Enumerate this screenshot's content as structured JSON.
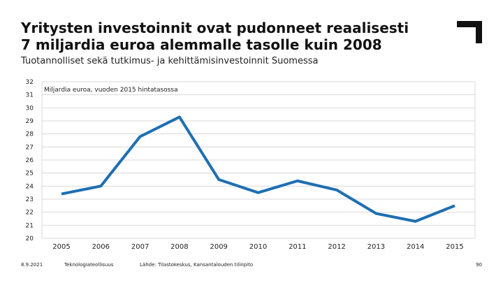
{
  "slide": {
    "title_line1": "Yritysten investoinnit ovat pudonneet reaalisesti",
    "title_line2": "7 miljardia euroa alemmalle tasolle kuin 2008",
    "subtitle": "Tuotannolliset sekä tutkimus- ja kehittämisinvestoinnit Suomessa"
  },
  "footer": {
    "date": "8.9.2021",
    "organization": "Teknologiateollisuus",
    "source": "Lähde: Tilastokeskus, Kansantalouden tilinpito",
    "page_number": "90"
  },
  "colors": {
    "line": "#1f6fb2",
    "grid": "#d9d9d9",
    "logo": "#111111"
  },
  "chart_data": {
    "type": "line",
    "annotation": "Miljardia euroa, vuoden 2015 hintatasossa",
    "categories": [
      "2005",
      "2006",
      "2007",
      "2008",
      "2009",
      "2010",
      "2011",
      "2012",
      "2013",
      "2014",
      "2015"
    ],
    "series": [
      {
        "values": [
          23.4,
          24.0,
          27.8,
          29.3,
          24.5,
          23.5,
          24.4,
          23.7,
          21.9,
          21.3,
          22.5
        ]
      }
    ],
    "ylim": [
      20,
      32
    ],
    "yticks": [
      "20",
      "21",
      "22",
      "23",
      "24",
      "25",
      "26",
      "27",
      "28",
      "29",
      "30",
      "31",
      "32"
    ],
    "grid": true
  }
}
